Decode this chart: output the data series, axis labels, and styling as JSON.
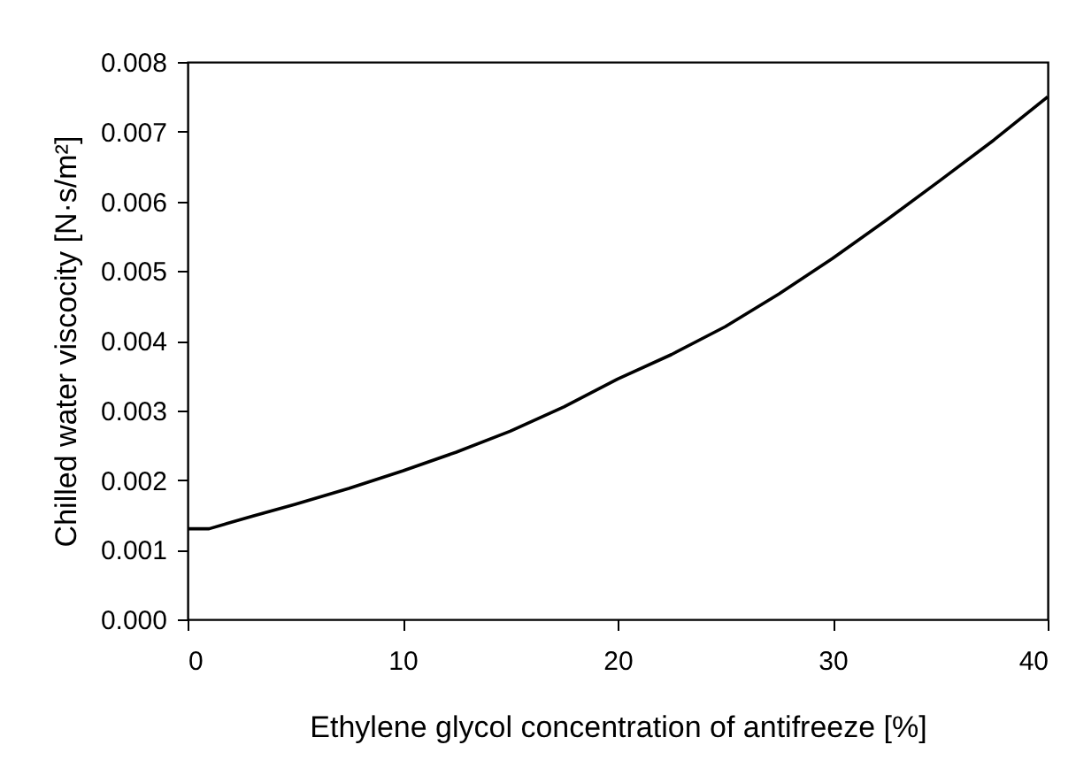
{
  "chart_data": {
    "type": "line",
    "xlabel": "Ethylene glycol concentration of antifreeze [%]",
    "ylabel": "Chilled water viscocity [N·s/m²]",
    "x": [
      0,
      1,
      3,
      5,
      7.5,
      10,
      12.5,
      15,
      17.5,
      20,
      22.5,
      25,
      27.5,
      30,
      32.5,
      35,
      37.5,
      40
    ],
    "series": [
      {
        "color": "#000000",
        "values": [
          0.0013,
          0.0013,
          0.00148,
          0.00165,
          0.00188,
          0.00213,
          0.0024,
          0.0027,
          0.00305,
          0.00345,
          0.0038,
          0.0042,
          0.00467,
          0.00518,
          0.00573,
          0.0063,
          0.00688,
          0.0075
        ]
      }
    ],
    "xlim": [
      0,
      40
    ],
    "xticks": [
      0,
      10,
      20,
      30,
      40
    ],
    "ylim": [
      0,
      0.008
    ],
    "yticks": [
      {
        "value": 0,
        "label": "0.000"
      },
      {
        "value": 0.001,
        "label": "0.001"
      },
      {
        "value": 0.002,
        "label": "0.002"
      },
      {
        "value": 0.003,
        "label": "0.003"
      },
      {
        "value": 0.004,
        "label": "0.004"
      },
      {
        "value": 0.005,
        "label": "0.005"
      },
      {
        "value": 0.006,
        "label": "0.006"
      },
      {
        "value": 0.007,
        "label": "0.007"
      },
      {
        "value": 0.008,
        "label": "0.008"
      }
    ],
    "grid": false,
    "marker": "none",
    "line_style": "solid"
  }
}
